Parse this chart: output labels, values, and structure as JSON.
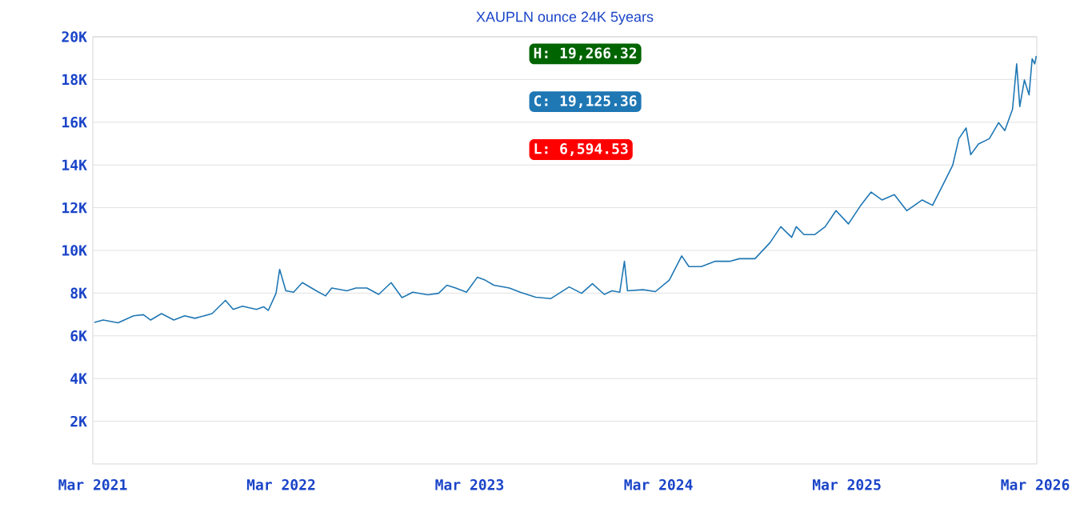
{
  "chart_data": {
    "type": "line",
    "title": "XAUPLN ounce 24K 5years",
    "color": "#1f77b4",
    "grid": "y",
    "marker": "none",
    "line_style": "solid",
    "annotations": [
      "H: 19,266.32",
      "C: 19,125.36",
      "L: 6,594.53"
    ],
    "xlim": [
      "2021-03-01",
      "2026-03-04"
    ],
    "xticks": [
      {
        "value": "2021-03",
        "label": "Mar 2021"
      },
      {
        "value": "2022-03",
        "label": "Mar 2022"
      },
      {
        "value": "2023-03",
        "label": "Mar 2023"
      },
      {
        "value": "2024-03",
        "label": "Mar 2024"
      },
      {
        "value": "2025-03",
        "label": "Mar 2025"
      },
      {
        "value": "2026-03",
        "label": "Mar 2026"
      }
    ],
    "ylim": [
      0,
      20000
    ],
    "yticks": [
      {
        "value": 2000,
        "label": "2K"
      },
      {
        "value": 4000,
        "label": "4K"
      },
      {
        "value": 6000,
        "label": "6K"
      },
      {
        "value": 8000,
        "label": "8K"
      },
      {
        "value": 10000,
        "label": "10K"
      },
      {
        "value": 12000,
        "label": "12K"
      },
      {
        "value": 14000,
        "label": "14K"
      },
      {
        "value": 16000,
        "label": "16K"
      },
      {
        "value": 18000,
        "label": "18K"
      },
      {
        "value": 20000,
        "label": "20K"
      }
    ],
    "x": [
      "2021-03-04",
      "2021-03-21",
      "2021-04-19",
      "2021-05-19",
      "2021-06-07",
      "2021-06-21",
      "2021-07-12",
      "2021-08-05",
      "2021-08-26",
      "2021-09-15",
      "2021-10-18",
      "2021-11-13",
      "2021-11-28",
      "2021-12-16",
      "2022-01-12",
      "2022-01-26",
      "2022-02-04",
      "2022-02-19",
      "2022-02-26",
      "2022-03-10",
      "2022-03-25",
      "2022-04-11",
      "2022-05-08",
      "2022-05-26",
      "2022-06-07",
      "2022-07-06",
      "2022-07-24",
      "2022-08-14",
      "2022-09-06",
      "2022-09-30",
      "2022-10-21",
      "2022-11-11",
      "2022-12-10",
      "2022-12-31",
      "2023-01-16",
      "2023-02-02",
      "2023-02-23",
      "2023-03-16",
      "2023-03-31",
      "2023-04-17",
      "2023-05-17",
      "2023-06-07",
      "2023-07-07",
      "2023-08-05",
      "2023-09-10",
      "2023-10-04",
      "2023-10-25",
      "2023-11-17",
      "2023-12-02",
      "2023-12-17",
      "2023-12-26",
      "2024-01-01",
      "2024-01-31",
      "2024-02-24",
      "2024-03-22",
      "2024-04-15",
      "2024-04-29",
      "2024-05-23",
      "2024-06-19",
      "2024-07-18",
      "2024-08-05",
      "2024-09-04",
      "2024-10-03",
      "2024-10-24",
      "2024-11-14",
      "2024-11-23",
      "2024-12-08",
      "2024-12-29",
      "2025-01-18",
      "2025-02-08",
      "2025-03-04",
      "2025-03-28",
      "2025-04-17",
      "2025-05-08",
      "2025-06-01",
      "2025-06-25",
      "2025-07-25",
      "2025-08-14",
      "2025-09-04",
      "2025-09-22",
      "2025-10-04",
      "2025-10-18",
      "2025-10-27",
      "2025-11-11",
      "2025-12-02",
      "2025-12-20",
      "2026-01-01",
      "2026-01-16",
      "2026-01-24",
      "2026-01-30",
      "2026-02-08",
      "2026-02-17",
      "2026-02-23",
      "2026-02-28",
      "2026-03-03"
    ],
    "values": [
      6630,
      6740,
      6610,
      6940,
      6990,
      6740,
      7040,
      6740,
      6940,
      6820,
      7040,
      7660,
      7240,
      7390,
      7240,
      7360,
      7190,
      7990,
      9110,
      8110,
      8040,
      8490,
      8110,
      7870,
      8240,
      8110,
      8240,
      8240,
      7940,
      8490,
      7790,
      8040,
      7920,
      7990,
      8370,
      8240,
      8040,
      8740,
      8610,
      8370,
      8240,
      8040,
      7810,
      7740,
      8290,
      7990,
      8440,
      7940,
      8110,
      8040,
      9490,
      8110,
      8160,
      8070,
      8610,
      9740,
      9240,
      9240,
      9490,
      9490,
      9610,
      9610,
      10360,
      11110,
      10610,
      11110,
      10740,
      10740,
      11110,
      11860,
      11240,
      12110,
      12730,
      12360,
      12610,
      11860,
      12360,
      12110,
      13110,
      13980,
      15230,
      15730,
      14480,
      14980,
      15230,
      15980,
      15610,
      16610,
      18730,
      16730,
      17980,
      17280,
      18970,
      18730,
      19100
    ]
  }
}
